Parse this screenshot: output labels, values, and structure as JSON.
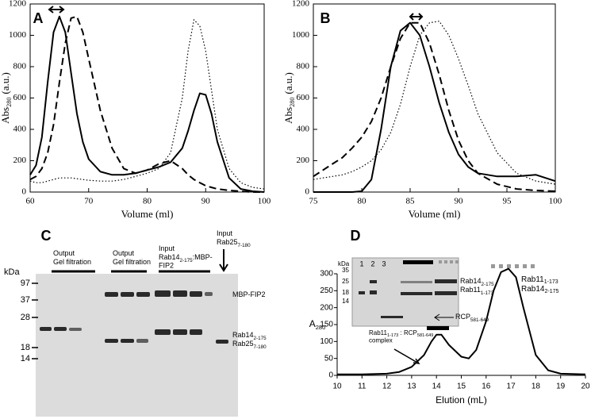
{
  "chart_data": [
    {
      "type": "line",
      "label": "A",
      "xlabel": "Volume (ml)",
      "ylabel": {
        "main": "Abs",
        "sub": "280",
        "tail": "(a.u.)"
      },
      "x": [
        60,
        61,
        62,
        63,
        64,
        65,
        66,
        67,
        68,
        69,
        70,
        72,
        74,
        76,
        78,
        80,
        82,
        84,
        86,
        87,
        88,
        89,
        90,
        91,
        92,
        94,
        96,
        98,
        100
      ],
      "xlim": [
        60,
        100
      ],
      "xticks": [
        60,
        70,
        80,
        90,
        100
      ],
      "ylim": [
        0,
        1200
      ],
      "yticks": [
        0,
        200,
        400,
        600,
        800,
        1000,
        1200
      ],
      "series": [
        {
          "color": "#000000",
          "style": "solid",
          "values": [
            110,
            170,
            350,
            700,
            1020,
            1120,
            1020,
            760,
            500,
            320,
            210,
            130,
            110,
            110,
            120,
            140,
            160,
            190,
            280,
            390,
            520,
            630,
            620,
            500,
            320,
            90,
            20,
            5,
            0
          ]
        },
        {
          "color": "#000000",
          "style": "dashed",
          "values": [
            80,
            100,
            150,
            250,
            430,
            700,
            950,
            1110,
            1120,
            1020,
            850,
            520,
            280,
            150,
            120,
            140,
            180,
            200,
            150,
            110,
            80,
            60,
            40,
            30,
            20,
            10,
            5,
            0,
            0
          ]
        },
        {
          "color": "#000000",
          "style": "dotted",
          "values": [
            70,
            60,
            60,
            70,
            80,
            90,
            90,
            90,
            85,
            80,
            75,
            70,
            70,
            80,
            100,
            120,
            150,
            250,
            600,
            900,
            1100,
            1060,
            900,
            650,
            400,
            150,
            60,
            30,
            20
          ]
        }
      ]
    },
    {
      "type": "line",
      "label": "B",
      "xlabel": "Volume (ml)",
      "ylabel": {
        "main": "Abs",
        "sub": "280",
        "tail": "(a.u.)"
      },
      "x": [
        75,
        76,
        77,
        78,
        79,
        80,
        81,
        82,
        83,
        84,
        85,
        86,
        87,
        88,
        89,
        90,
        91,
        92,
        94,
        96,
        98,
        100
      ],
      "xlim": [
        75,
        100
      ],
      "xticks": [
        75,
        80,
        85,
        90,
        95,
        100
      ],
      "ylim": [
        0,
        1200
      ],
      "yticks": [
        0,
        200,
        400,
        600,
        800,
        1000,
        1200
      ],
      "series": [
        {
          "color": "#000000",
          "style": "solid",
          "values": [
            0,
            0,
            0,
            0,
            0,
            5,
            80,
            400,
            800,
            1030,
            1080,
            1000,
            800,
            570,
            380,
            240,
            160,
            120,
            100,
            100,
            110,
            70
          ]
        },
        {
          "color": "#000000",
          "style": "dashed",
          "values": [
            100,
            140,
            180,
            220,
            280,
            350,
            450,
            600,
            800,
            980,
            1080,
            1080,
            950,
            750,
            520,
            330,
            200,
            120,
            50,
            20,
            10,
            5
          ]
        },
        {
          "color": "#000000",
          "style": "dotted",
          "values": [
            80,
            90,
            100,
            110,
            130,
            160,
            200,
            270,
            380,
            560,
            800,
            1000,
            1080,
            1090,
            1000,
            850,
            680,
            500,
            250,
            120,
            70,
            50
          ]
        }
      ]
    },
    {
      "type": "line",
      "label": "D",
      "xlabel": "Elution (mL)",
      "ylabel": {
        "main": "A",
        "sub": "280"
      },
      "x": [
        10,
        11,
        12,
        12.5,
        13,
        13.5,
        13.8,
        14,
        14.2,
        14.5,
        15,
        15.3,
        15.6,
        16,
        16.3,
        16.6,
        16.9,
        17.2,
        17.5,
        18,
        18.5,
        19,
        20
      ],
      "xlim": [
        10,
        20
      ],
      "xticks": [
        10,
        11,
        12,
        13,
        14,
        15,
        16,
        17,
        18,
        19,
        20
      ],
      "ylim": [
        0,
        300
      ],
      "yticks": [
        0,
        50,
        100,
        150,
        200,
        250,
        300
      ],
      "series": [
        {
          "color": "#000000",
          "style": "solid",
          "values": [
            3,
            3,
            5,
            10,
            25,
            60,
            100,
            120,
            120,
            90,
            55,
            50,
            75,
            160,
            250,
            305,
            315,
            290,
            200,
            60,
            15,
            5,
            3
          ]
        }
      ],
      "peak_labels": [
        [
          [
            "Rab11",
            "1-173",
            " : RCP",
            "581-649"
          ],
          [
            "complex"
          ]
        ],
        [
          [
            "Rab11",
            "1-173"
          ],
          [
            "Rab14",
            "2-175"
          ]
        ]
      ],
      "inset": {
        "kda": "kDa",
        "lanes": [
          "1",
          "2",
          "3"
        ],
        "markers": [
          35,
          25,
          18,
          14
        ],
        "band_labels": [
          [
            [
              "Rab14",
              "2-175"
            ],
            [
              "Rab11",
              "1-173"
            ]
          ],
          [
            [
              "RCP",
              "581-649"
            ]
          ]
        ]
      }
    }
  ],
  "panel_c": {
    "label": "C",
    "kda": "kDa",
    "markers": [
      97,
      37,
      28,
      18,
      14
    ],
    "headers": [
      [
        [
          "Output"
        ],
        [
          "Gel filtration"
        ]
      ],
      [
        [
          "Output"
        ],
        [
          "Gel filtration"
        ]
      ],
      [
        [
          "Input"
        ],
        [
          "Rab14",
          "2-175",
          ":MBP-"
        ],
        [
          "FIP2"
        ]
      ],
      [
        [
          "Input"
        ],
        [
          "Rab25",
          "7-180"
        ]
      ]
    ],
    "band_labels": [
      [
        [
          "MBP-FIP2"
        ]
      ],
      [
        [
          "Rab14",
          "2-175"
        ],
        [
          "Rab25",
          "7-180"
        ]
      ]
    ]
  }
}
